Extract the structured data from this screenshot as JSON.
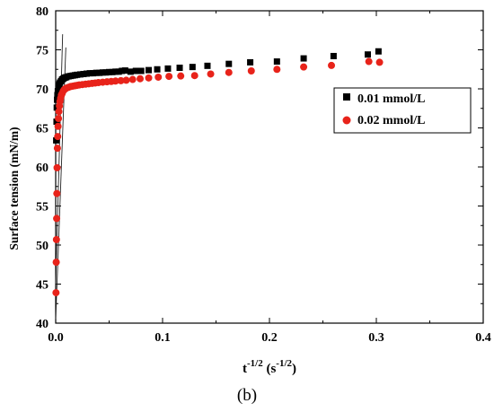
{
  "panel_label": "(b)",
  "chart_data": {
    "type": "scatter",
    "title": "",
    "xlabel_base": "t",
    "xlabel_exp": "-1/2",
    "xlabel_unit_open": " (s",
    "xlabel_unit_exp": "-1/2",
    "xlabel_unit_close": ")",
    "ylabel": "Surface tension  (mN/m)",
    "xlim": [
      0.0,
      0.4
    ],
    "ylim": [
      40,
      80
    ],
    "x_ticks": [
      0.0,
      0.1,
      0.2,
      0.3,
      0.4
    ],
    "x_tick_labels": [
      "0.0",
      "0.1",
      "0.2",
      "0.3",
      "0.4"
    ],
    "y_ticks": [
      40,
      45,
      50,
      55,
      60,
      65,
      70,
      75,
      80
    ],
    "y_tick_labels": [
      "40",
      "45",
      "50",
      "55",
      "60",
      "65",
      "70",
      "75",
      "80"
    ],
    "grid": false,
    "legend_position": "right",
    "series": [
      {
        "name": "0.01 mmol/L",
        "marker": "square",
        "color": "#000000",
        "x": [
          0.0005,
          0.0008,
          0.001,
          0.0013,
          0.0016,
          0.002,
          0.0025,
          0.003,
          0.0035,
          0.004,
          0.005,
          0.006,
          0.007,
          0.008,
          0.009,
          0.01,
          0.012,
          0.014,
          0.016,
          0.018,
          0.02,
          0.023,
          0.026,
          0.029,
          0.032,
          0.035,
          0.038,
          0.041,
          0.044,
          0.047,
          0.05,
          0.053,
          0.056,
          0.059,
          0.062,
          0.065,
          0.07,
          0.075,
          0.08,
          0.087,
          0.095,
          0.105,
          0.116,
          0.128,
          0.142,
          0.162,
          0.182,
          0.207,
          0.232,
          0.26,
          0.292,
          0.302
        ],
        "y": [
          63.4,
          65.8,
          67.6,
          68.6,
          69.2,
          69.7,
          70.1,
          70.4,
          70.6,
          70.8,
          71.0,
          71.2,
          71.3,
          71.4,
          71.45,
          71.5,
          71.6,
          71.65,
          71.7,
          71.75,
          71.8,
          71.85,
          71.9,
          71.95,
          72.0,
          72.0,
          72.05,
          72.05,
          72.1,
          72.1,
          72.15,
          72.15,
          72.2,
          72.2,
          72.3,
          72.35,
          72.2,
          72.3,
          72.3,
          72.4,
          72.5,
          72.6,
          72.7,
          72.8,
          72.95,
          73.2,
          73.4,
          73.5,
          73.9,
          74.2,
          74.4,
          74.8
        ]
      },
      {
        "name": "0.02 mmol/L",
        "marker": "circle",
        "color": "#e8231a",
        "x": [
          0.0003,
          0.0005,
          0.0007,
          0.0009,
          0.0011,
          0.0013,
          0.0016,
          0.0019,
          0.0022,
          0.0026,
          0.003,
          0.0035,
          0.004,
          0.0046,
          0.0053,
          0.006,
          0.007,
          0.008,
          0.009,
          0.01,
          0.012,
          0.014,
          0.016,
          0.018,
          0.02,
          0.022,
          0.025,
          0.028,
          0.031,
          0.034,
          0.037,
          0.04,
          0.044,
          0.048,
          0.052,
          0.056,
          0.061,
          0.066,
          0.072,
          0.079,
          0.087,
          0.096,
          0.106,
          0.117,
          0.13,
          0.145,
          0.162,
          0.183,
          0.207,
          0.232,
          0.258,
          0.293,
          0.303
        ],
        "y": [
          43.9,
          47.8,
          50.7,
          53.4,
          56.6,
          59.9,
          62.4,
          63.9,
          65.2,
          66.2,
          67.1,
          67.8,
          68.4,
          68.8,
          69.2,
          69.4,
          69.7,
          69.9,
          70.0,
          70.1,
          70.2,
          70.3,
          70.35,
          70.4,
          70.45,
          70.5,
          70.55,
          70.6,
          70.65,
          70.7,
          70.75,
          70.8,
          70.85,
          70.9,
          70.95,
          71.0,
          71.05,
          71.1,
          71.2,
          71.3,
          71.4,
          71.5,
          71.6,
          71.65,
          71.7,
          71.9,
          72.1,
          72.3,
          72.5,
          72.8,
          73.0,
          73.5,
          73.4
        ]
      }
    ],
    "fit_lines": [
      {
        "x": [
          0.0,
          0.0065
        ],
        "y": [
          45.0,
          77.0
        ]
      },
      {
        "x": [
          0.0,
          0.0095
        ],
        "y": [
          40.5,
          75.3
        ]
      }
    ]
  }
}
